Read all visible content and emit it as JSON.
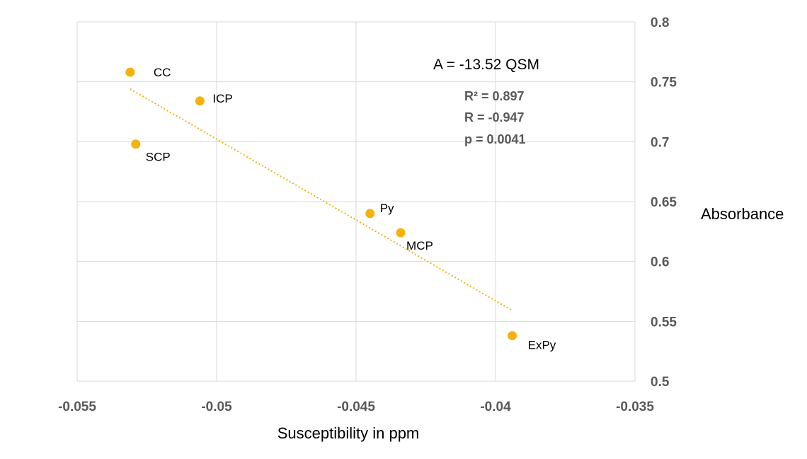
{
  "chart_data": {
    "type": "scatter",
    "xlabel": "Susceptibility in ppm",
    "ylabel": "Absorbance",
    "xlim": [
      -0.055,
      -0.035
    ],
    "ylim": [
      0.5,
      0.8
    ],
    "x_ticks": [
      -0.055,
      -0.05,
      -0.045,
      -0.04,
      -0.035
    ],
    "x_tick_labels": [
      "-0.055",
      "-0.05",
      "-0.045",
      "-0.04",
      "-0.035"
    ],
    "y_ticks": [
      0.5,
      0.55,
      0.6,
      0.65,
      0.7,
      0.75,
      0.8
    ],
    "y_tick_labels": [
      "0.5",
      "0.55",
      "0.6",
      "0.65",
      "0.7",
      "0.75",
      "0.8"
    ],
    "y_axis_side": "right",
    "grid": true,
    "series": [
      {
        "name": "Absorbance",
        "color": "#F5B10D",
        "points": [
          {
            "label": "CC",
            "x": -0.0531,
            "y": 0.758
          },
          {
            "label": "ICP",
            "x": -0.0506,
            "y": 0.734
          },
          {
            "label": "SCP",
            "x": -0.0529,
            "y": 0.698
          },
          {
            "label": "Py",
            "x": -0.0445,
            "y": 0.64
          },
          {
            "label": "MCP",
            "x": -0.0434,
            "y": 0.624
          },
          {
            "label": "ExPy",
            "x": -0.0394,
            "y": 0.538
          }
        ]
      }
    ],
    "trendline": {
      "type": "linear",
      "color": "#F5B10D",
      "x_range": [
        -0.0531,
        -0.0394
      ],
      "y_range": [
        0.744,
        0.559
      ]
    },
    "annotations": {
      "equation": "A = -13.52 QSM",
      "r_squared": "R² = 0.897",
      "r": "R = -0.947",
      "p": "p = 0.0041"
    }
  }
}
